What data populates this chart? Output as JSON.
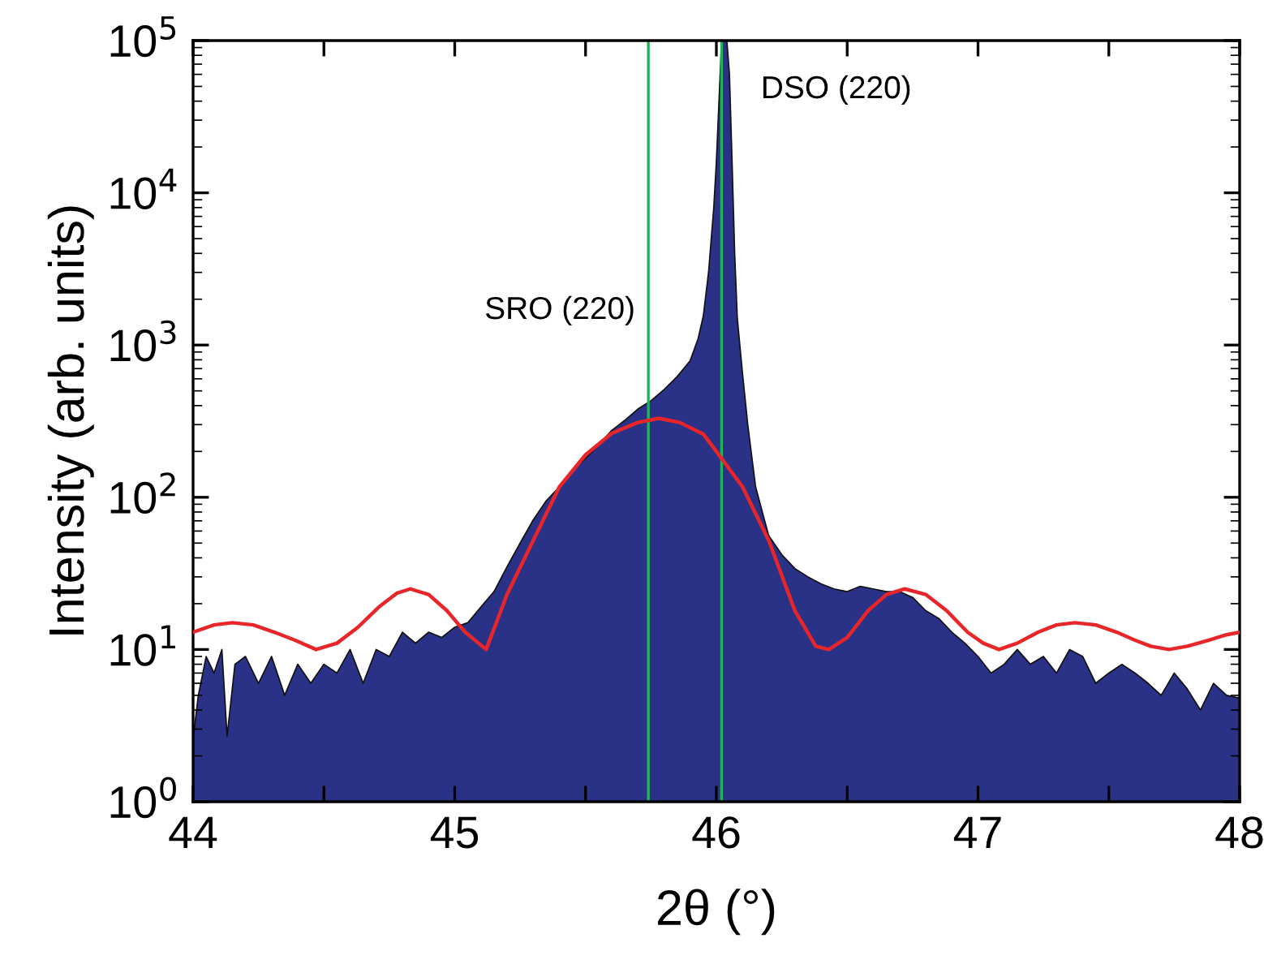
{
  "chart_data": {
    "type": "area",
    "xlabel": "2θ (°)",
    "ylabel": "Intensity (arb. units)",
    "log": "y",
    "grid": false,
    "legend": false,
    "xlim": [
      44,
      48
    ],
    "xticks": [
      44,
      {
        "value": 44.5,
        "label": null
      },
      45,
      {
        "value": 45.5,
        "label": null
      },
      46,
      {
        "value": 46.5,
        "label": null
      },
      47,
      {
        "value": 47.5,
        "label": null
      },
      48
    ],
    "ylim": [
      1,
      100000
    ],
    "yticks": [
      {
        "value": 1,
        "label": "10$^{0}$"
      },
      {
        "value": 10,
        "label": "10$^{1}$"
      },
      {
        "value": 100,
        "label": "10$^{2}$"
      },
      {
        "value": 1000,
        "label": "10$^{3}$"
      },
      {
        "value": 10000,
        "label": "10$^{4}$"
      },
      {
        "value": 100000,
        "label": "10$^{5}$"
      }
    ],
    "series": [
      {
        "color": "#2a3288",
        "x": [
          44.0,
          44.02,
          44.05,
          44.08,
          44.11,
          44.13,
          44.16,
          44.2,
          44.25,
          44.3,
          44.35,
          44.4,
          44.45,
          44.5,
          44.55,
          44.6,
          44.65,
          44.7,
          44.75,
          44.8,
          44.85,
          44.9,
          44.95,
          45.0,
          45.05,
          45.1,
          45.15,
          45.2,
          45.25,
          45.3,
          45.35,
          45.4,
          45.45,
          45.5,
          45.55,
          45.6,
          45.65,
          45.7,
          45.75,
          45.8,
          45.85,
          45.9,
          45.93,
          45.95,
          45.97,
          45.99,
          46.0,
          46.01,
          46.02,
          46.04,
          46.05,
          46.06,
          46.07,
          46.08,
          46.1,
          46.12,
          46.15,
          46.18,
          46.2,
          46.25,
          46.3,
          46.35,
          46.4,
          46.45,
          46.5,
          46.55,
          46.6,
          46.65,
          46.7,
          46.75,
          46.8,
          46.85,
          46.9,
          46.95,
          47.0,
          47.05,
          47.1,
          47.15,
          47.2,
          47.25,
          47.3,
          47.35,
          47.4,
          47.45,
          47.5,
          47.55,
          47.6,
          47.65,
          47.7,
          47.75,
          47.8,
          47.85,
          47.9,
          47.95,
          48.0
        ],
        "values": [
          2.6,
          5,
          9,
          7,
          10,
          2.7,
          8,
          9,
          6,
          9,
          5,
          8,
          6,
          8,
          7,
          10,
          6,
          10,
          9,
          13,
          11,
          13,
          12,
          14,
          15,
          19,
          24,
          35,
          50,
          71,
          95,
          117,
          150,
          180,
          220,
          275,
          320,
          380,
          430,
          510,
          620,
          790,
          1100,
          1550,
          3000,
          8000,
          16000,
          40000,
          100000,
          100000,
          60000,
          16000,
          4000,
          1500,
          650,
          300,
          117,
          75,
          56,
          42,
          34,
          30,
          27,
          25,
          24,
          26,
          25,
          24,
          24,
          22,
          18,
          16,
          13,
          11,
          9,
          7,
          8,
          10,
          8,
          9,
          7,
          10,
          9,
          6,
          7,
          8,
          7,
          6,
          5,
          7,
          5.5,
          4,
          6,
          5,
          4.8
        ]
      },
      {
        "type": "line",
        "color": "#e8262a",
        "x": [
          44.0,
          44.08,
          44.15,
          44.23,
          44.31,
          44.39,
          44.47,
          44.55,
          44.63,
          44.71,
          44.78,
          44.83,
          44.9,
          44.97,
          45.04,
          45.12,
          45.2,
          45.3,
          45.4,
          45.5,
          45.6,
          45.7,
          45.78,
          45.86,
          45.95,
          46.0,
          46.1,
          46.2,
          46.3,
          46.38,
          46.43,
          46.5,
          46.58,
          46.65,
          46.72,
          46.8,
          46.88,
          46.96,
          47.02,
          47.08,
          47.15,
          47.23,
          47.3,
          47.37,
          47.45,
          47.53,
          47.6,
          47.66,
          47.73,
          47.8,
          47.88,
          47.95,
          48.0
        ],
        "values": [
          13,
          14.5,
          15,
          14.5,
          13,
          11.5,
          10,
          11,
          14,
          19,
          23.5,
          25,
          23,
          18,
          13,
          10,
          23,
          52,
          117,
          190,
          263,
          310,
          330,
          310,
          260,
          200,
          117,
          52,
          18,
          10.5,
          10,
          12,
          18,
          23,
          25,
          23,
          18,
          13,
          11,
          10,
          11,
          13,
          14.5,
          15,
          14.5,
          13,
          11.5,
          10.5,
          10,
          10.5,
          11.5,
          12.5,
          13
        ]
      }
    ],
    "ref_lines": [
      {
        "axis": "x",
        "value": 45.74,
        "color": "#21b35a",
        "label": "SRO (220)"
      },
      {
        "axis": "x",
        "value": 46.02,
        "color": "#21b35a",
        "label": "DSO (220)"
      }
    ]
  }
}
